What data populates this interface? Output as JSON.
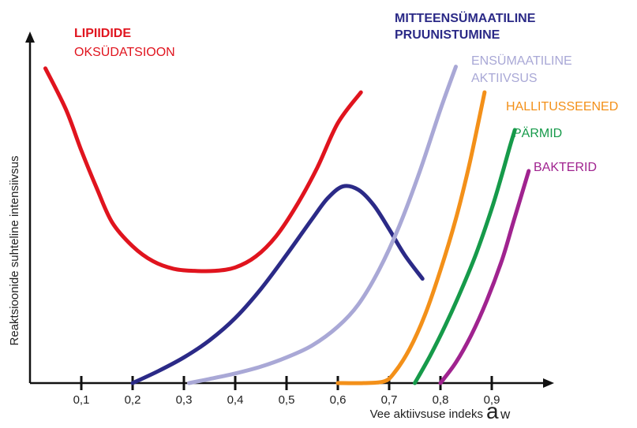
{
  "chart_data": {
    "type": "line",
    "title": "",
    "xlabel": "Vee aktiivsuse indeks",
    "xlabel_symbol": "a",
    "xlabel_subscript": "w",
    "ylabel": "Reaktsioonide suhteline intensiivsus",
    "xlim": [
      0,
      1.0
    ],
    "ylim": [
      0,
      1.0
    ],
    "grid": false,
    "legend": "labels on curves",
    "x_ticks": [
      "0,1",
      "0,2",
      "0,3",
      "0,4",
      "0,5",
      "0,6",
      "0,7",
      "0,8",
      "0,9"
    ],
    "x_tick_values": [
      0.1,
      0.2,
      0.3,
      0.4,
      0.5,
      0.6,
      0.7,
      0.8,
      0.9
    ],
    "series": [
      {
        "name": "LIPIIDIDE OKSÜDATSIOON",
        "label_lines": [
          "LIPIIDIDE",
          "OKSÜDATSIOON"
        ],
        "color": "#e0141e",
        "x": [
          0.03,
          0.07,
          0.1,
          0.13,
          0.16,
          0.2,
          0.24,
          0.28,
          0.32,
          0.36,
          0.4,
          0.44,
          0.48,
          0.52,
          0.56,
          0.6,
          0.645
        ],
        "y": [
          0.92,
          0.8,
          0.68,
          0.57,
          0.47,
          0.4,
          0.356,
          0.334,
          0.328,
          0.328,
          0.338,
          0.37,
          0.43,
          0.52,
          0.63,
          0.76,
          0.85
        ]
      },
      {
        "name": "MITTEENSÜMAATILINE PRUUNISTUMINE",
        "label_lines": [
          "MITTEENSÜMAATILINE",
          "PRUUNISTUMINE"
        ],
        "color": "#2b2a87",
        "x": [
          0.2,
          0.25,
          0.3,
          0.35,
          0.4,
          0.45,
          0.5,
          0.55,
          0.58,
          0.61,
          0.64,
          0.67,
          0.7,
          0.73,
          0.765
        ],
        "y": [
          0.0,
          0.035,
          0.075,
          0.125,
          0.19,
          0.275,
          0.375,
          0.48,
          0.54,
          0.575,
          0.565,
          0.52,
          0.45,
          0.375,
          0.305
        ]
      },
      {
        "name": "ENSÜMAATILINE AKTIIVSUS",
        "label_lines": [
          "ENSÜMAATILINE",
          "AKTIIVSUS"
        ],
        "color": "#a9a8d6",
        "x": [
          0.31,
          0.35,
          0.4,
          0.45,
          0.5,
          0.55,
          0.6,
          0.64,
          0.68,
          0.72,
          0.76,
          0.8,
          0.83
        ],
        "y": [
          0.0,
          0.012,
          0.028,
          0.048,
          0.075,
          0.11,
          0.165,
          0.23,
          0.33,
          0.46,
          0.62,
          0.8,
          0.925
        ]
      },
      {
        "name": "HALLITUSSEENED",
        "label_lines": [
          "HALLITUSSEENED"
        ],
        "color": "#f39019",
        "x": [
          0.6,
          0.65,
          0.69,
          0.71,
          0.74,
          0.77,
          0.8,
          0.83,
          0.855,
          0.875,
          0.886
        ],
        "y": [
          0.0,
          0.0,
          0.005,
          0.03,
          0.1,
          0.2,
          0.33,
          0.48,
          0.63,
          0.77,
          0.85
        ]
      },
      {
        "name": "PÄRMID",
        "label_lines": [
          "PÄRMID"
        ],
        "color": "#169a4a",
        "x": [
          0.75,
          0.78,
          0.81,
          0.84,
          0.87,
          0.9,
          0.92,
          0.935,
          0.945
        ],
        "y": [
          0.0,
          0.08,
          0.17,
          0.27,
          0.38,
          0.51,
          0.61,
          0.69,
          0.74
        ]
      },
      {
        "name": "BAKTERID",
        "label_lines": [
          "BAKTERID"
        ],
        "color": "#a0238f",
        "x": [
          0.8,
          0.83,
          0.86,
          0.89,
          0.92,
          0.94,
          0.958,
          0.972
        ],
        "y": [
          0.0,
          0.06,
          0.14,
          0.24,
          0.36,
          0.46,
          0.55,
          0.62
        ]
      }
    ]
  }
}
